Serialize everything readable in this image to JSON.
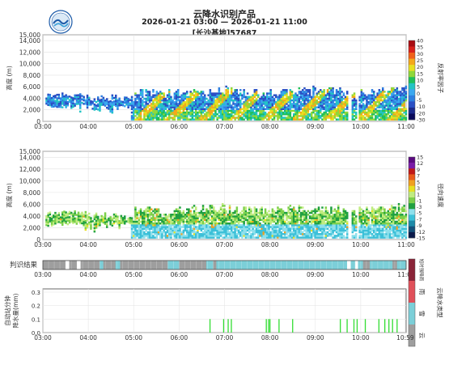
{
  "header": {
    "title": "云降水识别产品",
    "time_range": "2026-01-21 03:00 — 2026-01-21 11:00",
    "station": "[长沙基地]57687"
  },
  "chart_data": [
    {
      "type": "heatmap",
      "name": "reflectivity-panel",
      "ylabel": "高度 (m)",
      "colorbar_label": "反射率因子",
      "colorbar_ticks": [
        "-30",
        "-20",
        "-10",
        "-5",
        "0",
        "5",
        "10",
        "15",
        "20",
        "25",
        "30",
        "35",
        "40"
      ],
      "colorbar_colors": [
        "#0a0a5a",
        "#1b2a8c",
        "#2a4fc4",
        "#2e7fe0",
        "#3aa8f0",
        "#22c4c4",
        "#1fc05a",
        "#8fd83a",
        "#e8e020",
        "#f4a81a",
        "#f06018",
        "#d8201a",
        "#a80c12"
      ],
      "x_ticks": [
        "03:00",
        "04:00",
        "05:00",
        "06:00",
        "07:00",
        "08:00",
        "09:00",
        "10:00",
        "11:00"
      ],
      "y_ticks": [
        "0",
        "2,000",
        "4,000",
        "6,000",
        "8,000",
        "10,000",
        "12,000",
        "14,000",
        "15,000"
      ],
      "ylim": [
        0,
        15000
      ],
      "xlim": [
        3.0,
        11.0
      ],
      "grid": true
    },
    {
      "type": "heatmap",
      "name": "velocity-panel",
      "ylabel": "高度 (m)",
      "colorbar_label": "径向速度",
      "colorbar_ticks": [
        "-15",
        "-12",
        "-9",
        "-7",
        "-5",
        "-3",
        "-1",
        "1",
        "3",
        "5",
        "7",
        "9",
        "12",
        "15"
      ],
      "colorbar_colors": [
        "#0a1a4a",
        "#14507a",
        "#1d8aa8",
        "#3cc0d8",
        "#8ee0ec",
        "#1fa040",
        "#7cd04a",
        "#c0ec80",
        "#e8e020",
        "#f0a020",
        "#e85a1a",
        "#c01818",
        "#7a1aa8",
        "#5a0a80"
      ],
      "x_ticks": [
        "03:00",
        "04:00",
        "05:00",
        "06:00",
        "07:00",
        "08:00",
        "09:00",
        "10:00",
        "11:00"
      ],
      "y_ticks": [
        "0",
        "2,000",
        "4,000",
        "6,000",
        "8,000",
        "10,000",
        "12,000",
        "14,000",
        "15,000"
      ],
      "ylim": [
        0,
        15000
      ],
      "xlim": [
        3.0,
        11.0
      ],
      "grid": true
    },
    {
      "type": "bar",
      "name": "classification-strip",
      "ylabel": "判识结果",
      "x_ticks": [
        "03:00",
        "04:00",
        "05:00",
        "06:00",
        "07:00",
        "08:00",
        "09:00",
        "10:00",
        "11:00"
      ],
      "legend_title": "云降水类型",
      "legend": [
        {
          "label": "云",
          "color": "#9e9e9e"
        },
        {
          "label": "雪",
          "color": "#7ccfd8"
        },
        {
          "label": "雨",
          "color": "#e0505a"
        },
        {
          "label": "短时强降雨",
          "color": "#8a2438"
        }
      ],
      "segments": [
        {
          "start": 3.0,
          "end": 3.5,
          "cls": "云"
        },
        {
          "start": 3.5,
          "end": 3.58,
          "cls": "none"
        },
        {
          "start": 3.58,
          "end": 3.75,
          "cls": "云"
        },
        {
          "start": 3.75,
          "end": 3.83,
          "cls": "none"
        },
        {
          "start": 3.83,
          "end": 4.25,
          "cls": "云"
        },
        {
          "start": 4.25,
          "end": 4.33,
          "cls": "雪"
        },
        {
          "start": 4.33,
          "end": 4.6,
          "cls": "云"
        },
        {
          "start": 4.6,
          "end": 4.7,
          "cls": "雪"
        },
        {
          "start": 4.7,
          "end": 5.75,
          "cls": "云"
        },
        {
          "start": 5.75,
          "end": 6.0,
          "cls": "雪"
        },
        {
          "start": 6.0,
          "end": 6.6,
          "cls": "云"
        },
        {
          "start": 6.6,
          "end": 6.75,
          "cls": "雪"
        },
        {
          "start": 6.75,
          "end": 6.82,
          "cls": "云"
        },
        {
          "start": 6.82,
          "end": 9.7,
          "cls": "雪"
        },
        {
          "start": 9.7,
          "end": 9.78,
          "cls": "none"
        },
        {
          "start": 9.78,
          "end": 9.88,
          "cls": "雪"
        },
        {
          "start": 9.88,
          "end": 9.94,
          "cls": "none"
        },
        {
          "start": 9.94,
          "end": 10.05,
          "cls": "雪"
        },
        {
          "start": 10.05,
          "end": 10.2,
          "cls": "云"
        },
        {
          "start": 10.2,
          "end": 10.7,
          "cls": "雪"
        },
        {
          "start": 10.7,
          "end": 10.8,
          "cls": "云"
        },
        {
          "start": 10.8,
          "end": 11.0,
          "cls": "雪"
        }
      ]
    },
    {
      "type": "bar",
      "name": "precip-panel",
      "ylabel_lines": [
        "自动站分钟",
        "降水量(mm)"
      ],
      "y_ticks": [
        "0.0",
        "0.1",
        "0.2",
        "0.3"
      ],
      "ylim": [
        0,
        0.3
      ],
      "x_ticks": [
        "03:00",
        "04:00",
        "05:00",
        "06:00",
        "07:00",
        "08:00",
        "09:00",
        "10:00",
        "10:59"
      ],
      "bar_color": "#33dd33",
      "bars": [
        {
          "t": 6.68,
          "v": 0.1
        },
        {
          "t": 6.98,
          "v": 0.1
        },
        {
          "t": 7.08,
          "v": 0.1
        },
        {
          "t": 7.15,
          "v": 0.1
        },
        {
          "t": 7.92,
          "v": 0.1
        },
        {
          "t": 7.97,
          "v": 0.1
        },
        {
          "t": 8.0,
          "v": 0.1
        },
        {
          "t": 8.2,
          "v": 0.1
        },
        {
          "t": 8.5,
          "v": 0.1
        },
        {
          "t": 9.55,
          "v": 0.1
        },
        {
          "t": 9.7,
          "v": 0.1
        },
        {
          "t": 9.85,
          "v": 0.1
        },
        {
          "t": 9.92,
          "v": 0.1
        },
        {
          "t": 10.1,
          "v": 0.1
        },
        {
          "t": 10.4,
          "v": 0.1
        },
        {
          "t": 10.53,
          "v": 0.1
        },
        {
          "t": 10.62,
          "v": 0.1
        },
        {
          "t": 10.7,
          "v": 0.1
        },
        {
          "t": 10.8,
          "v": 0.1
        }
      ]
    }
  ]
}
